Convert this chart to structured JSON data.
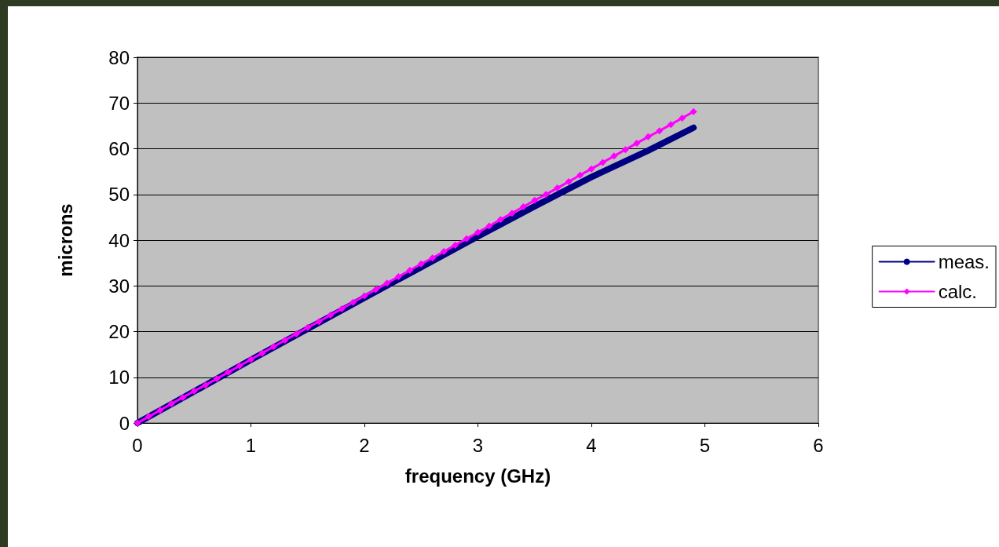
{
  "chart_data": {
    "type": "line",
    "xlabel": "frequency (GHz)",
    "ylabel": "microns",
    "xlim": [
      0,
      6
    ],
    "xticks": [
      0,
      1,
      2,
      3,
      4,
      5,
      6
    ],
    "ylim": [
      0,
      80
    ],
    "yticks": [
      0,
      10,
      20,
      30,
      40,
      50,
      60,
      70,
      80
    ],
    "grid": "y",
    "legend": "right",
    "series": [
      {
        "name": "meas.",
        "color": "#000080",
        "marker": "none",
        "x": [
          0,
          0.5,
          1,
          1.5,
          2,
          2.5,
          3,
          3.5,
          4,
          4.5,
          4.9
        ],
        "values": [
          0,
          6.9,
          13.8,
          20.6,
          27.4,
          34.1,
          40.8,
          47.4,
          53.8,
          59.6,
          64.6
        ]
      },
      {
        "name": "calc.",
        "color": "#ff00ff",
        "marker": "diamond",
        "x": [
          0,
          0.1,
          0.2,
          0.3,
          0.4,
          0.5,
          0.6,
          0.7,
          0.8,
          0.9,
          1,
          1.1,
          1.2,
          1.3,
          1.4,
          1.5,
          1.6,
          1.7,
          1.8,
          1.9,
          2,
          2.1,
          2.2,
          2.3,
          2.4,
          2.5,
          2.6,
          2.7,
          2.8,
          2.9,
          3,
          3.1,
          3.2,
          3.3,
          3.4,
          3.5,
          3.6,
          3.7,
          3.8,
          3.9,
          4,
          4.1,
          4.2,
          4.3,
          4.4,
          4.5,
          4.6,
          4.7,
          4.8,
          4.9
        ],
        "values": [
          0,
          1.4,
          2.8,
          4.2,
          5.6,
          7.0,
          8.3,
          9.7,
          11.1,
          12.5,
          13.9,
          15.3,
          16.7,
          18.1,
          19.5,
          20.9,
          22.2,
          23.6,
          25.0,
          26.4,
          27.8,
          29.2,
          30.6,
          32.0,
          33.4,
          34.8,
          36.1,
          37.5,
          38.9,
          40.3,
          41.7,
          43.1,
          44.5,
          45.9,
          47.3,
          48.7,
          50.0,
          51.4,
          52.8,
          54.2,
          55.6,
          57.0,
          58.4,
          59.8,
          61.2,
          62.6,
          63.9,
          65.3,
          66.7,
          68.1
        ]
      }
    ]
  }
}
